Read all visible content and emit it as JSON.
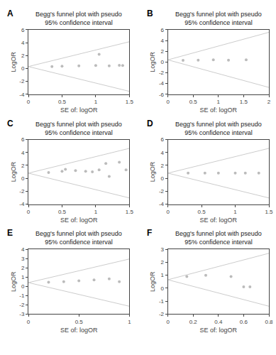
{
  "chart_data": [
    {
      "type": "scatter",
      "annotation": "A",
      "title": "Begg's funnel plot with pseudo\n95% confidence interval",
      "x_label": "SE of: logOR",
      "y_label": "LogOR",
      "xlim": [
        0,
        1.5
      ],
      "ylim": [
        -4,
        6
      ],
      "xticks": [
        0,
        0.5,
        1,
        1.5
      ],
      "yticks": [
        -4,
        -2,
        0,
        2,
        4,
        6
      ],
      "grid": false,
      "series": [
        {
          "type": "line",
          "color": "#cccccc",
          "x": [
            0,
            1.5
          ],
          "values": [
            0.3,
            4.14
          ]
        },
        {
          "type": "line",
          "color": "#cccccc",
          "x": [
            0,
            1.5
          ],
          "values": [
            0.3,
            -3.54
          ]
        },
        {
          "type": "scatter",
          "color": "#bbbbbb",
          "x": [
            0.35,
            0.5,
            0.75,
            1.0,
            1.2,
            1.4,
            1.05,
            1.35
          ],
          "values": [
            0.3,
            0.35,
            0.4,
            0.45,
            0.4,
            0.45,
            2.2,
            0.5
          ]
        }
      ]
    },
    {
      "type": "scatter",
      "annotation": "B",
      "title": "Begg's funnel plot with pseudo\n95% confidence interval",
      "x_label": "SE of: logOR",
      "y_label": "LogOR",
      "xlim": [
        0,
        2
      ],
      "ylim": [
        -6,
        6
      ],
      "xticks": [
        0,
        0.5,
        1,
        1.5,
        2
      ],
      "yticks": [
        -6,
        -4,
        -2,
        0,
        2,
        4,
        6
      ],
      "grid": false,
      "series": [
        {
          "type": "line",
          "color": "#cccccc",
          "x": [
            0,
            2
          ],
          "values": [
            0.4,
            5.52
          ]
        },
        {
          "type": "line",
          "color": "#cccccc",
          "x": [
            0,
            2
          ],
          "values": [
            0.4,
            -4.72
          ]
        },
        {
          "type": "scatter",
          "color": "#bbbbbb",
          "x": [
            0.3,
            0.6,
            0.9,
            1.2,
            1.55
          ],
          "values": [
            0.3,
            0.35,
            0.4,
            0.35,
            0.4
          ]
        }
      ]
    },
    {
      "type": "scatter",
      "annotation": "C",
      "title": "Begg's funnel plot with pseudo\n95% confidence interval",
      "x_label": "SE of: logOR",
      "y_label": "LogOR",
      "xlim": [
        0,
        1.5
      ],
      "ylim": [
        -4,
        6
      ],
      "xticks": [
        0,
        0.5,
        1,
        1.5
      ],
      "yticks": [
        -4,
        -2,
        0,
        2,
        4,
        6
      ],
      "grid": false,
      "series": [
        {
          "type": "line",
          "color": "#cccccc",
          "x": [
            0,
            1.5
          ],
          "values": [
            0.8,
            4.64
          ]
        },
        {
          "type": "line",
          "color": "#cccccc",
          "x": [
            0,
            1.5
          ],
          "values": [
            0.8,
            -3.04
          ]
        },
        {
          "type": "scatter",
          "color": "#bbbbbb",
          "x": [
            0.3,
            0.5,
            0.55,
            0.7,
            0.85,
            0.95,
            1.05,
            1.15,
            1.35,
            1.45,
            1.2
          ],
          "values": [
            0.9,
            1.1,
            1.4,
            1.2,
            1.1,
            1.0,
            1.3,
            2.3,
            2.5,
            1.3,
            0.3
          ]
        }
      ]
    },
    {
      "type": "scatter",
      "annotation": "D",
      "title": "Begg's funnel plot with pseudo\n95% confidence interval",
      "x_label": "SE of: logOR",
      "y_label": "LogOR",
      "xlim": [
        0,
        1.5
      ],
      "ylim": [
        -4,
        6
      ],
      "xticks": [
        0,
        0.5,
        1,
        1.5
      ],
      "yticks": [
        -4,
        -2,
        0,
        2,
        4,
        6
      ],
      "grid": false,
      "series": [
        {
          "type": "line",
          "color": "#cccccc",
          "x": [
            0,
            1.5
          ],
          "values": [
            0.8,
            4.64
          ]
        },
        {
          "type": "line",
          "color": "#cccccc",
          "x": [
            0,
            1.5
          ],
          "values": [
            0.8,
            -3.04
          ]
        },
        {
          "type": "scatter",
          "color": "#bbbbbb",
          "x": [
            0.3,
            0.55,
            0.75,
            1.0,
            1.15,
            1.35
          ],
          "values": [
            0.8,
            0.8,
            0.8,
            0.8,
            0.8,
            0.8
          ]
        }
      ]
    },
    {
      "type": "scatter",
      "annotation": "E",
      "title": "Begg's funnel plot with pseudo\n95% confidence interval",
      "x_label": "SE of: logOR",
      "y_label": "LogOR",
      "xlim": [
        0,
        1
      ],
      "ylim": [
        -3,
        4
      ],
      "xticks": [
        0,
        0.5,
        1
      ],
      "yticks": [
        -3,
        -2,
        -1,
        0,
        1,
        2,
        3,
        4
      ],
      "grid": false,
      "series": [
        {
          "type": "line",
          "color": "#cccccc",
          "x": [
            0,
            1
          ],
          "values": [
            0.4,
            2.96
          ]
        },
        {
          "type": "line",
          "color": "#cccccc",
          "x": [
            0,
            1
          ],
          "values": [
            0.4,
            -2.16
          ]
        },
        {
          "type": "scatter",
          "color": "#bbbbbb",
          "x": [
            0.2,
            0.35,
            0.5,
            0.65,
            0.8,
            0.9
          ],
          "values": [
            0.45,
            0.5,
            0.6,
            0.7,
            0.8,
            0.5
          ]
        }
      ]
    },
    {
      "type": "scatter",
      "annotation": "F",
      "title": "Begg's funnel plot with pseudo\n95% confidence interval",
      "x_label": "SE of: logOR",
      "y_label": "LogOR",
      "xlim": [
        0,
        0.8
      ],
      "ylim": [
        -2,
        3
      ],
      "xticks": [
        0,
        0.2,
        0.4,
        0.6,
        0.8
      ],
      "yticks": [
        -2,
        -1,
        0,
        1,
        2,
        3
      ],
      "grid": false,
      "series": [
        {
          "type": "line",
          "color": "#cccccc",
          "x": [
            0,
            0.8
          ],
          "values": [
            0.65,
            2.698
          ]
        },
        {
          "type": "line",
          "color": "#cccccc",
          "x": [
            0,
            0.8
          ],
          "values": [
            0.65,
            -1.398
          ]
        },
        {
          "type": "scatter",
          "color": "#bbbbbb",
          "x": [
            0.15,
            0.3,
            0.5,
            0.6,
            0.65
          ],
          "values": [
            0.9,
            1.0,
            0.9,
            0.1,
            0.1
          ]
        }
      ]
    }
  ]
}
